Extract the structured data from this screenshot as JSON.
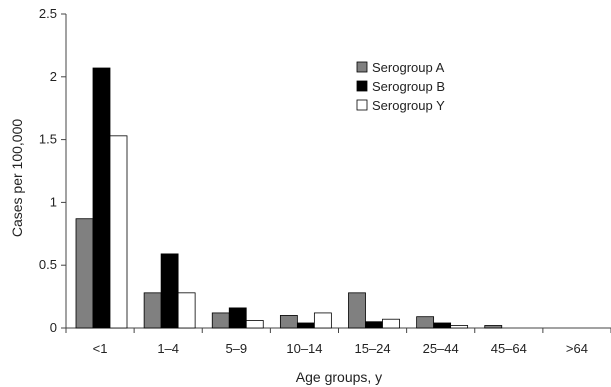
{
  "chart_data": {
    "type": "bar",
    "title": "",
    "xlabel": "Age groups, y",
    "ylabel": "Cases per 100,000",
    "ylim": [
      0,
      2.5
    ],
    "yticks": [
      "0",
      "0.5",
      "1",
      "1.5",
      "2",
      "2.5"
    ],
    "categories": [
      "<1",
      "1–4",
      "5–9",
      "10–14",
      "15–24",
      "25–44",
      "45–64",
      ">64"
    ],
    "legend_position": "top-right",
    "grid": false,
    "series": [
      {
        "name": "Serogroup A",
        "color": "#808080",
        "values": [
          0.87,
          0.28,
          0.12,
          0.1,
          0.28,
          0.09,
          0.02,
          0.0
        ]
      },
      {
        "name": "Serogroup B",
        "color": "#000000",
        "values": [
          2.07,
          0.59,
          0.16,
          0.04,
          0.05,
          0.04,
          0.0,
          0.0
        ]
      },
      {
        "name": "Serogroup Y",
        "color": "#ffffff",
        "values": [
          1.53,
          0.28,
          0.06,
          0.12,
          0.07,
          0.02,
          0.0,
          0.0
        ]
      }
    ]
  }
}
